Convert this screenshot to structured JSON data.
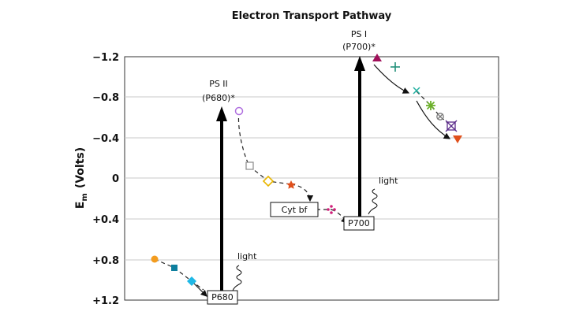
{
  "title": "Electron Transport Pathway",
  "y_axis": {
    "label_main": "E",
    "label_sub": "m",
    "label_rest": "(Volts)",
    "ticks": [
      "−1.2",
      "−0.8",
      "−0.4",
      "0",
      "+0.4",
      "+0.8",
      "+1.2"
    ]
  },
  "labels": {
    "ps2_line1": "PS II",
    "ps2_line2": "(P680)*",
    "ps1_line1": "PS I",
    "ps1_line2": "(P700)*",
    "light_1": "light",
    "light_2": "light",
    "p680": "P680",
    "p700": "P700",
    "cytbf": "Cyt bf"
  },
  "colors": {
    "orange": "#f39c1f",
    "teal": "#0e7f9e",
    "cyan": "#1fb8e6",
    "purple": "#b070e0",
    "gray": "#8a8a8a",
    "gold": "#e8b600",
    "redorange": "#e0501c",
    "magenta": "#d0207a",
    "maroon": "#a0105a",
    "green_teal": "#22907a",
    "lime": "#6cb02a",
    "indigo": "#5a2a8a"
  }
}
